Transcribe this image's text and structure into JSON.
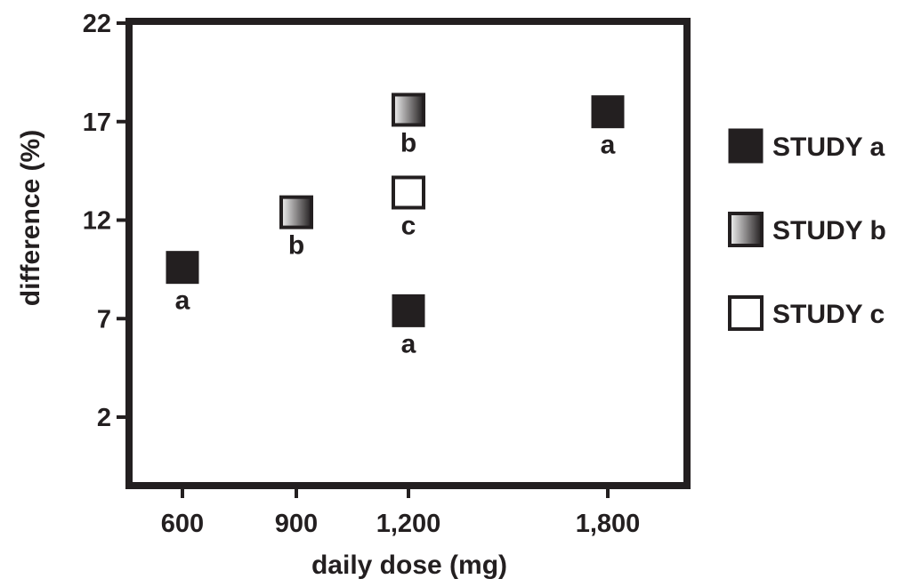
{
  "chart_data": {
    "type": "scatter",
    "xlabel": "daily dose (mg)",
    "ylabel": "difference (%)",
    "xlim": [
      500,
      2000
    ],
    "ylim": [
      -2.4,
      22
    ],
    "x_ticks": [
      {
        "value": 600,
        "label": "600"
      },
      {
        "value": 900,
        "label": "900"
      },
      {
        "value": 1200,
        "label": "1,200"
      },
      {
        "value": 1800,
        "label": "1,800"
      }
    ],
    "y_ticks": [
      {
        "value": 2,
        "label": "2"
      },
      {
        "value": 7,
        "label": "7"
      },
      {
        "value": 12,
        "label": "12"
      },
      {
        "value": 17,
        "label": "17"
      },
      {
        "value": 22,
        "label": "22"
      }
    ],
    "grid": false,
    "legend_position": "right",
    "series": [
      {
        "name": "STUDY a",
        "fill": "solid",
        "color": "#231f20",
        "points": [
          {
            "x": 600,
            "y": 9.6,
            "label": "a"
          },
          {
            "x": 1200,
            "y": 7.4,
            "label": "a"
          },
          {
            "x": 1800,
            "y": 17.5,
            "label": "a"
          }
        ]
      },
      {
        "name": "STUDY b",
        "fill": "gradient",
        "color": "#231f20",
        "points": [
          {
            "x": 900,
            "y": 12.4,
            "label": "b"
          },
          {
            "x": 1200,
            "y": 17.6,
            "label": "b"
          }
        ]
      },
      {
        "name": "STUDY c",
        "fill": "hollow",
        "color": "#231f20",
        "points": [
          {
            "x": 1200,
            "y": 13.4,
            "label": "c"
          }
        ]
      }
    ]
  }
}
